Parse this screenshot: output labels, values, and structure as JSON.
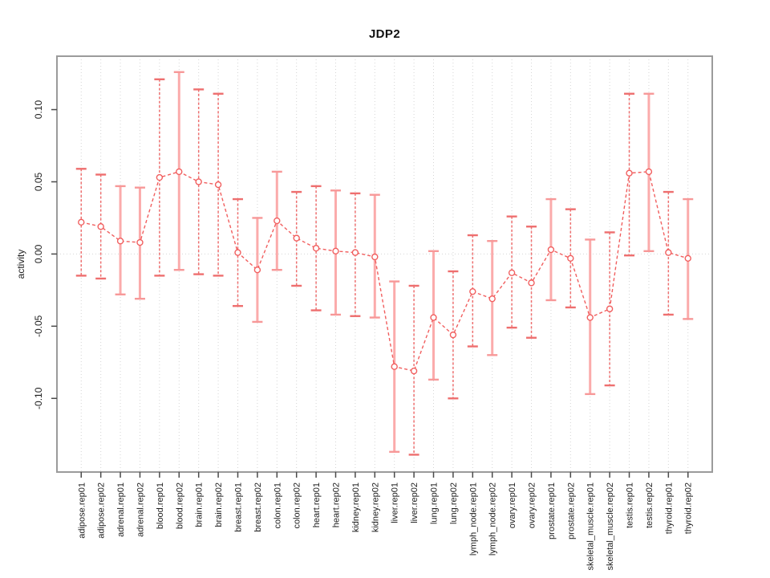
{
  "figure": {
    "title": "JDP2",
    "ylabel": "activity"
  },
  "chart_data": {
    "type": "line",
    "title": "JDP2",
    "xlabel": "",
    "ylabel": "activity",
    "legend": "none",
    "grid": "dotted vertical gridline at each category; dotted horizontal line at y=0",
    "marker": "open-circle",
    "line_style": "dashed",
    "error_bars": true,
    "ylim": [
      -0.151,
      0.137
    ],
    "yticks": {
      "values": [
        0.1,
        0.05,
        0.0,
        -0.05,
        -0.1
      ],
      "labels": [
        "0.10",
        "0.05",
        "0.00",
        "-0.05",
        "-0.10"
      ]
    },
    "categories": [
      "adipose.rep01",
      "adipose.rep02",
      "adrenal.rep01",
      "adrenal.rep02",
      "blood.rep01",
      "blood.rep02",
      "brain.rep01",
      "brain.rep02",
      "breast.rep01",
      "breast.rep02",
      "colon.rep01",
      "colon.rep02",
      "heart.rep01",
      "heart.rep02",
      "kidney.rep01",
      "kidney.rep02",
      "liver.rep01",
      "liver.rep02",
      "lung.rep01",
      "lung.rep02",
      "lymph_node.rep01",
      "lymph_node.rep02",
      "ovary.rep01",
      "ovary.rep02",
      "prostate.rep01",
      "prostate.rep02",
      "skeletal_muscle.rep01",
      "skeletal_muscle.rep02",
      "testis.rep01",
      "testis.rep02",
      "thyroid.rep01",
      "thyroid.rep02"
    ],
    "series": [
      {
        "name": "activity",
        "values": [
          0.022,
          0.019,
          0.009,
          0.008,
          0.053,
          0.057,
          0.05,
          0.048,
          0.001,
          -0.011,
          0.023,
          0.011,
          0.004,
          0.002,
          0.001,
          -0.002,
          -0.078,
          -0.081,
          -0.044,
          -0.056,
          -0.026,
          -0.031,
          -0.013,
          -0.02,
          0.003,
          -0.003,
          -0.044,
          -0.038,
          0.056,
          0.057,
          0.001,
          -0.003
        ],
        "lower": [
          -0.015,
          -0.017,
          -0.028,
          -0.031,
          -0.015,
          -0.011,
          -0.014,
          -0.015,
          -0.036,
          -0.047,
          -0.011,
          -0.022,
          -0.039,
          -0.042,
          -0.043,
          -0.044,
          -0.137,
          -0.139,
          -0.087,
          -0.1,
          -0.064,
          -0.07,
          -0.051,
          -0.058,
          -0.032,
          -0.037,
          -0.097,
          -0.091,
          -0.001,
          0.002,
          -0.042,
          -0.045
        ],
        "upper": [
          0.059,
          0.055,
          0.047,
          0.046,
          0.121,
          0.126,
          0.114,
          0.111,
          0.038,
          0.025,
          0.057,
          0.043,
          0.047,
          0.044,
          0.042,
          0.041,
          -0.019,
          -0.022,
          0.002,
          -0.012,
          0.013,
          0.009,
          0.026,
          0.019,
          0.038,
          0.031,
          0.01,
          0.015,
          0.111,
          0.111,
          0.043,
          0.038
        ]
      }
    ],
    "bar_styles": [
      "dashed",
      "dashed",
      "solid",
      "solid",
      "dashed",
      "solid",
      "dashed",
      "dashed",
      "dashed",
      "solid",
      "solid",
      "dashed",
      "dashed",
      "solid",
      "dashed",
      "solid",
      "solid",
      "dashed",
      "solid",
      "dashed",
      "dashed",
      "solid",
      "dashed",
      "dashed",
      "solid",
      "dashed",
      "solid",
      "dashed",
      "dashed",
      "solid",
      "dashed",
      "solid"
    ],
    "colors": {
      "point": "#f15f5f",
      "series_line": "#f15f5f",
      "error_bar_solid": "#fbabab",
      "error_bar_dashed": "#ee6f6f",
      "error_bar_cap": "#f79898",
      "gridline": "#d5d5d5",
      "frame": "#9b9b9b",
      "tick": "#4a4a4a",
      "tick_text": "#1d1d1d",
      "background": "#ffffff"
    }
  }
}
